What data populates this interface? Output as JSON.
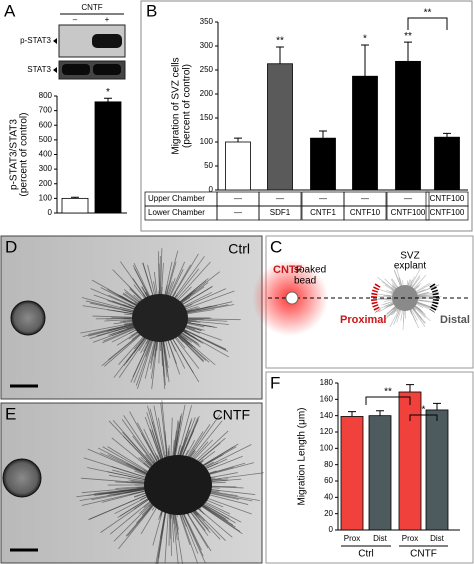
{
  "panel_labels": [
    "A",
    "B",
    "C",
    "D",
    "E",
    "F"
  ],
  "chart_data": [
    {
      "type": "bar",
      "ylabel": [
        "p-STAT3/STAT3",
        "(percent of control)"
      ],
      "categories": [
        null,
        null
      ],
      "values": [
        100,
        760
      ],
      "errors": [
        8,
        25
      ],
      "colors": [
        "#ffffff",
        "#000000"
      ],
      "annotations": [
        null,
        "*"
      ],
      "ylim": [
        0,
        800
      ],
      "yticks": [
        0,
        100,
        200,
        300,
        400,
        500,
        600,
        700,
        800
      ],
      "blot": {
        "title": "CNTF",
        "lanes": [
          "–",
          "+"
        ],
        "rows": [
          "p-STAT3",
          "STAT3"
        ]
      }
    },
    {
      "type": "bar",
      "ylabel": [
        "Migration of SVZ cells",
        "(percent of control)"
      ],
      "categories": [
        null,
        null,
        null,
        null,
        null,
        null
      ],
      "values": [
        100,
        263,
        108,
        237,
        268,
        110
      ],
      "errors": [
        8,
        35,
        15,
        65,
        40,
        8
      ],
      "colors": [
        "#ffffff",
        "#5a5a5a",
        "#000000",
        "#000000",
        "#000000",
        "#000000"
      ],
      "annotations": [
        null,
        "**",
        null,
        "*",
        "**",
        null
      ],
      "bracket_labels": [
        "**"
      ],
      "ylim": [
        0,
        350
      ],
      "yticks": [
        0,
        50,
        100,
        150,
        200,
        250,
        300,
        350
      ],
      "table": [
        {
          "label": "Upper Chamber",
          "cells": [
            "—",
            "—",
            "—",
            "—",
            "—",
            "CNTF100"
          ]
        },
        {
          "label": "Lower Chamber",
          "cells": [
            "—",
            "SDF1",
            "CNTF1",
            "CNTF10",
            "CNTF100",
            "CNTF100"
          ]
        }
      ]
    },
    {
      "type": "bar",
      "ylabel": [
        "Migration Length (μm)"
      ],
      "categories": [
        "Prox",
        "Dist",
        "Prox",
        "Dist"
      ],
      "groups": [
        "Ctrl",
        "CNTF"
      ],
      "values": [
        139,
        140,
        169,
        147
      ],
      "errors": [
        6,
        6,
        9,
        8
      ],
      "colors": [
        "#f0413d",
        "#4d5b5e",
        "#f0413d",
        "#4d5b5e"
      ],
      "annotations": [
        null,
        null,
        null,
        null
      ],
      "bracket_labels": [
        "**",
        "*"
      ],
      "ylim": [
        0,
        180
      ],
      "yticks": [
        0,
        20,
        40,
        60,
        80,
        100,
        120,
        140,
        160,
        180
      ]
    }
  ],
  "micrographs": [
    "Ctrl",
    "CNTF"
  ],
  "diagram": {
    "bead": [
      "CNTF",
      "soaked",
      "bead"
    ],
    "explant": [
      "SVZ",
      "explant"
    ],
    "proximal": "Proximal",
    "distal": "Distal"
  }
}
